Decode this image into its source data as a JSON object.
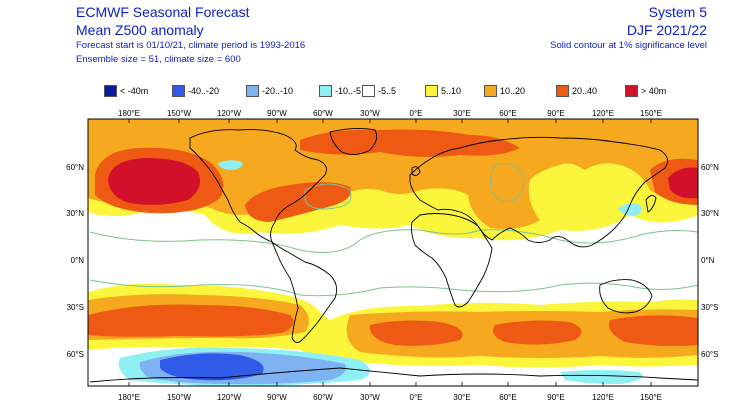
{
  "header": {
    "title": "ECMWF Seasonal Forecast",
    "subtitle": "Mean Z500 anomaly",
    "forecast_info": "Forecast start is 01/10/21, climate period is 1993-2016",
    "ensemble_info": "Ensemble size = 51, climate size = 600",
    "system": "System 5",
    "period": "DJF 2021/22",
    "significance_note": "Solid contour at 1% significance level"
  },
  "legend": [
    {
      "label": "< -40m",
      "color": "#0b1a9e"
    },
    {
      "label": "-40..-20",
      "color": "#2f5be8"
    },
    {
      "label": "-20..-10",
      "color": "#7fb2f2"
    },
    {
      "label": "-10..-5",
      "color": "#8ff0f4"
    },
    {
      "label": "-5..5",
      "color": "#ffffff"
    },
    {
      "label": "5..10",
      "color": "#fbf63c"
    },
    {
      "label": "10..20",
      "color": "#f6a81e"
    },
    {
      "label": "20..40",
      "color": "#ee5a14"
    },
    {
      "label": "> 40m",
      "color": "#d2102a"
    }
  ],
  "map": {
    "lon_labels": [
      "180°E",
      "150°W",
      "120°W",
      "90°W",
      "60°W",
      "30°W",
      "0°E",
      "30°E",
      "60°E",
      "90°E",
      "120°E",
      "150°E"
    ],
    "lat_labels": [
      "60°N",
      "30°N",
      "0°N",
      "30°S",
      "60°S"
    ]
  }
}
